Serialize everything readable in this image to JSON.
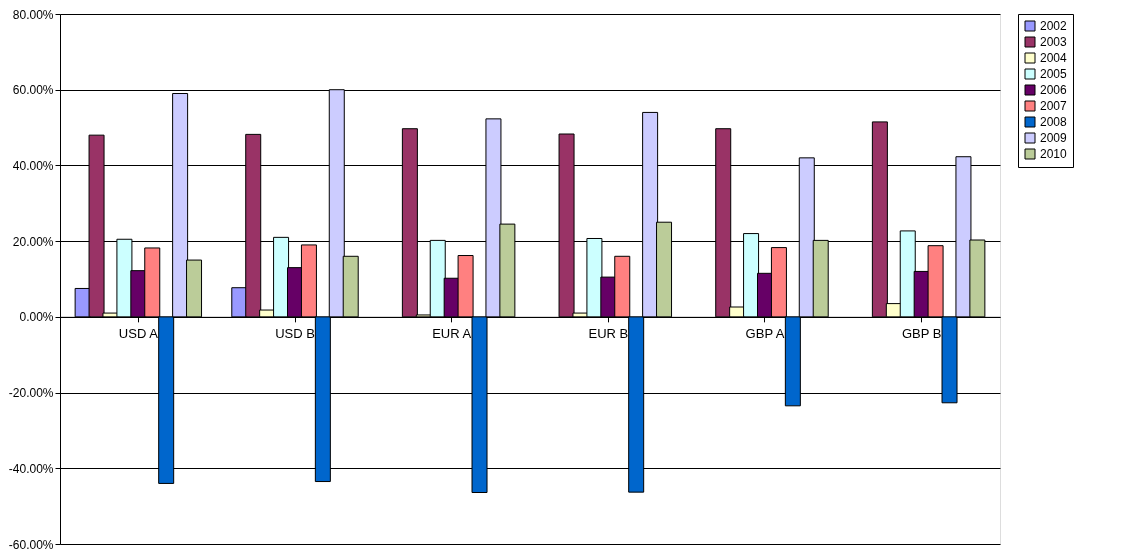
{
  "chart_data": {
    "type": "bar",
    "categories": [
      "USD A",
      "USD B",
      "EUR A",
      "EUR B",
      "GBP A",
      "GBP B"
    ],
    "series": [
      {
        "name": "2002",
        "color": "#9999ff",
        "values": [
          7.5,
          7.7,
          null,
          null,
          null,
          null
        ]
      },
      {
        "name": "2003",
        "color": "#993366",
        "values": [
          48,
          48.2,
          49.7,
          48.3,
          49.7,
          51.5
        ]
      },
      {
        "name": "2004",
        "color": "#ffffcc",
        "values": [
          1,
          1.8,
          0.5,
          1,
          2.6,
          3.5
        ]
      },
      {
        "name": "2005",
        "color": "#ccffff",
        "values": [
          20.5,
          21,
          20.2,
          20.7,
          22,
          22.7
        ]
      },
      {
        "name": "2006",
        "color": "#660066",
        "values": [
          12.2,
          13,
          10.2,
          10.5,
          11.5,
          12
        ]
      },
      {
        "name": "2007",
        "color": "#ff8080",
        "values": [
          18.2,
          19,
          16.2,
          16,
          18.3,
          18.8
        ]
      },
      {
        "name": "2008",
        "color": "#0066cc",
        "values": [
          -44,
          -43.5,
          -46.4,
          -46.3,
          -23.5,
          -22.7
        ]
      },
      {
        "name": "2009",
        "color": "#ccccff",
        "values": [
          59,
          60,
          52.3,
          54,
          42,
          42.3
        ]
      },
      {
        "name": "2010",
        "color": "#bbcc99",
        "values": [
          15,
          16,
          24.5,
          25,
          20.2,
          20.3
        ]
      }
    ],
    "ylim": [
      -60,
      80
    ],
    "yticks": [
      {
        "value": -60,
        "label": "-60.00%"
      },
      {
        "value": -40,
        "label": "-40.00%"
      },
      {
        "value": -20,
        "label": "-20.00%"
      },
      {
        "value": 0,
        "label": "0.00%"
      },
      {
        "value": 20,
        "label": "20.00%"
      },
      {
        "value": 40,
        "label": "40.00%"
      },
      {
        "value": 60,
        "label": "60.00%"
      },
      {
        "value": 80,
        "label": "80.00%"
      }
    ],
    "grid": "y",
    "legend": "right"
  }
}
